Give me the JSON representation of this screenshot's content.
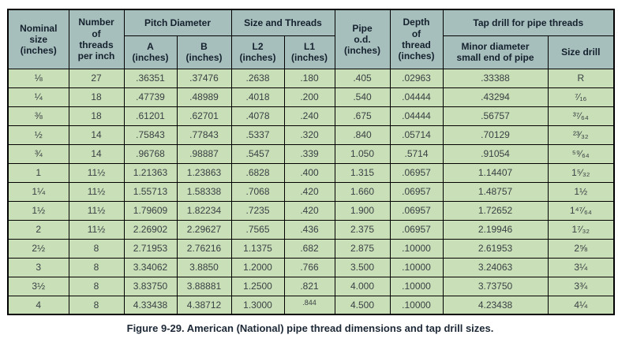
{
  "table": {
    "headers": {
      "nominal_size": "Nominal\nsize\n(inches)",
      "threads_per_inch": "Number\nof\nthreads\nper inch",
      "pitch_diameter": "Pitch Diameter",
      "pitch_a": "A\n(inches)",
      "pitch_b": "B\n(inches)",
      "size_and_threads": "Size and Threads",
      "l2": "L2\n(inches)",
      "l1": "L1\n(inches)",
      "pipe_od": "Pipe\no.d.\n(inches)",
      "depth_of_thread": "Depth\nof\nthread\n(inches)",
      "tap_drill": "Tap drill for pipe threads",
      "minor_diameter": "Minor diameter\nsmall end of pipe",
      "size_drill": "Size drill"
    },
    "rows": [
      [
        "⅛",
        "27",
        ".36351",
        ".37476",
        ".2638",
        ".180",
        ".405",
        ".02963",
        ".33388",
        "R"
      ],
      [
        "¼",
        "18",
        ".47739",
        ".48989",
        ".4018",
        ".200",
        ".540",
        ".04444",
        ".43294",
        "⁷⁄₁₆"
      ],
      [
        "⅜",
        "18",
        ".61201",
        ".62701",
        ".4078",
        ".240",
        ".675",
        ".04444",
        ".56757",
        "³⁷⁄₆₄"
      ],
      [
        "½",
        "14",
        ".75843",
        ".77843",
        ".5337",
        ".320",
        ".840",
        ".05714",
        ".70129",
        "²³⁄₃₂"
      ],
      [
        "¾",
        "14",
        ".96768",
        ".98887",
        ".5457",
        ".339",
        "1.050",
        ".5714",
        ".91054",
        "⁵⁹⁄₆₄"
      ],
      [
        "1",
        "11½",
        "1.21363",
        "1.23863",
        ".6828",
        ".400",
        "1.315",
        ".06957",
        "1.14407",
        "1⁵⁄₃₂"
      ],
      [
        "1¼",
        "11½",
        "1.55713",
        "1.58338",
        ".7068",
        ".420",
        "1.660",
        ".06957",
        "1.48757",
        "1½"
      ],
      [
        "1½",
        "11½",
        "1.79609",
        "1.82234",
        ".7235",
        ".420",
        "1.900",
        ".06957",
        "1.72652",
        "1⁴⁷⁄₆₄"
      ],
      [
        "2",
        "11½",
        "2.26902",
        "2.29627",
        ".7565",
        ".436",
        "2.375",
        ".06957",
        "2.19946",
        "1⁷⁄₃₂"
      ],
      [
        "2½",
        "8",
        "2.71953",
        "2.76216",
        "1.1375",
        ".682",
        "2.875",
        ".10000",
        "2.61953",
        "2⅝"
      ],
      [
        "3",
        "8",
        "3.34062",
        "3.8850",
        "1.2000",
        ".766",
        "3.500",
        ".10000",
        "3.24063",
        "3¼"
      ],
      [
        "3½",
        "8",
        "3.83750",
        "3.88881",
        "1.2500",
        ".821",
        "4.000",
        ".10000",
        "3.73750",
        "3¾"
      ],
      [
        "4",
        "8",
        "4.33438",
        "4.38712",
        "1.3000",
        ".844",
        "4.500",
        ".10000",
        "4.23438",
        "4¼"
      ]
    ],
    "special_cells": [
      {
        "row": 12,
        "col": 5,
        "class": "small-raised"
      }
    ]
  },
  "caption": "Figure 9-29. American (National) pipe thread dimensions and tap drill sizes.",
  "colors": {
    "header_bg": "#a6bebc",
    "row_bg": "#c9dfb8",
    "border": "#000000",
    "header_text": "#15222e",
    "body_text": "#3a4144",
    "caption_text": "#1c2836"
  }
}
